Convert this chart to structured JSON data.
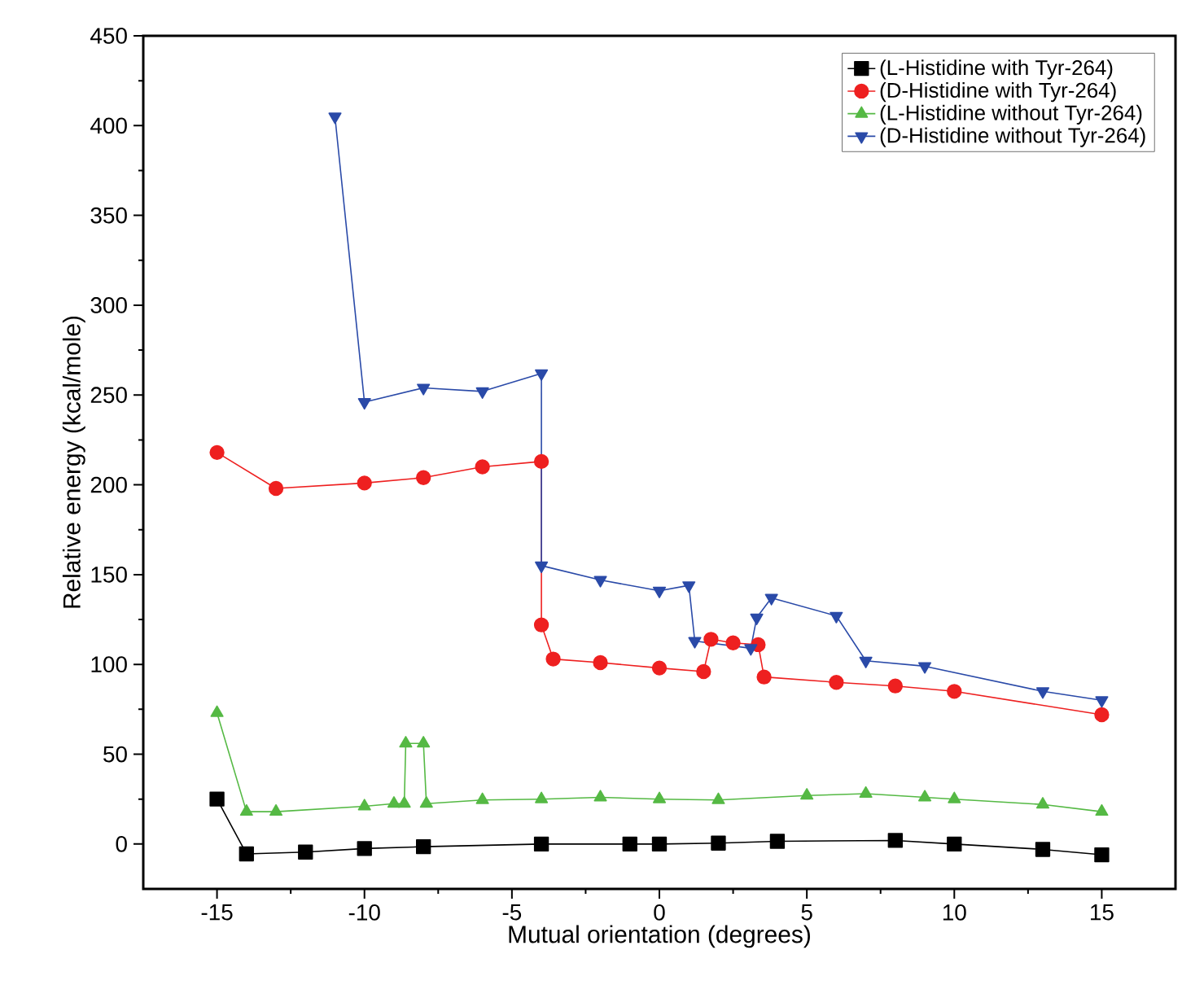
{
  "chart_data": {
    "type": "line",
    "xlabel": "Mutual orientation (degrees)",
    "ylabel": "Relative energy (kcal/mole)",
    "xlim": [
      -17.5,
      17.5
    ],
    "ylim": [
      -25,
      450
    ],
    "xticks": [
      -15,
      -10,
      -5,
      0,
      5,
      10,
      15
    ],
    "yticks": [
      0,
      50,
      100,
      150,
      200,
      250,
      300,
      350,
      400,
      450
    ],
    "grid": false,
    "legend": "top right",
    "series": [
      {
        "name": "(L-Histidine with Tyr-264)",
        "color": "#000000",
        "marker": "square",
        "x": [
          -15,
          -14,
          -12,
          -10,
          -8,
          -4,
          -1,
          0,
          2,
          4,
          8,
          10,
          13,
          15
        ],
        "values": [
          25,
          -5.5,
          -4.5,
          -2.5,
          -1.5,
          0,
          0,
          0,
          0.5,
          1.5,
          2,
          0,
          -3,
          -6
        ]
      },
      {
        "name": "(D-Histidine with Tyr-264)",
        "color": "#ee2020",
        "marker": "circle",
        "x": [
          -15,
          -13,
          -10,
          -8,
          -6,
          -4,
          -4,
          -3.6,
          -2,
          0,
          1.5,
          1.75,
          2.5,
          3.35,
          3.55,
          6,
          8,
          10,
          15
        ],
        "values": [
          218,
          198,
          201,
          204,
          210,
          213,
          122,
          103,
          101,
          98,
          96,
          114,
          112,
          111,
          93,
          90,
          88,
          85,
          72
        ]
      },
      {
        "name": "(L-Histidine without Tyr-264)",
        "color": "#55b944",
        "marker": "triangle",
        "x": [
          -15,
          -14,
          -13,
          -10,
          -9,
          -8.65,
          -8.6,
          -8,
          -7.9,
          -6,
          -4,
          -2,
          0,
          2,
          5,
          7,
          9,
          10,
          13,
          15
        ],
        "values": [
          73,
          18,
          18,
          21,
          22.5,
          22.5,
          56,
          56,
          22.5,
          24.5,
          25,
          26,
          25,
          24.5,
          27,
          28,
          26,
          25,
          22,
          18
        ]
      },
      {
        "name": "(D-Histidine without Tyr-264)",
        "color": "#2a4aa8",
        "marker": "triangle-down",
        "x": [
          -11,
          -10,
          -8,
          -6,
          -4,
          -4,
          -2,
          0,
          1,
          1.2,
          3.1,
          3.3,
          3.8,
          6,
          7,
          9,
          13,
          15
        ],
        "values": [
          405,
          246,
          254,
          252,
          262,
          155,
          147,
          141,
          144,
          113,
          109,
          126,
          137,
          127,
          102,
          99,
          85,
          80
        ]
      }
    ]
  }
}
